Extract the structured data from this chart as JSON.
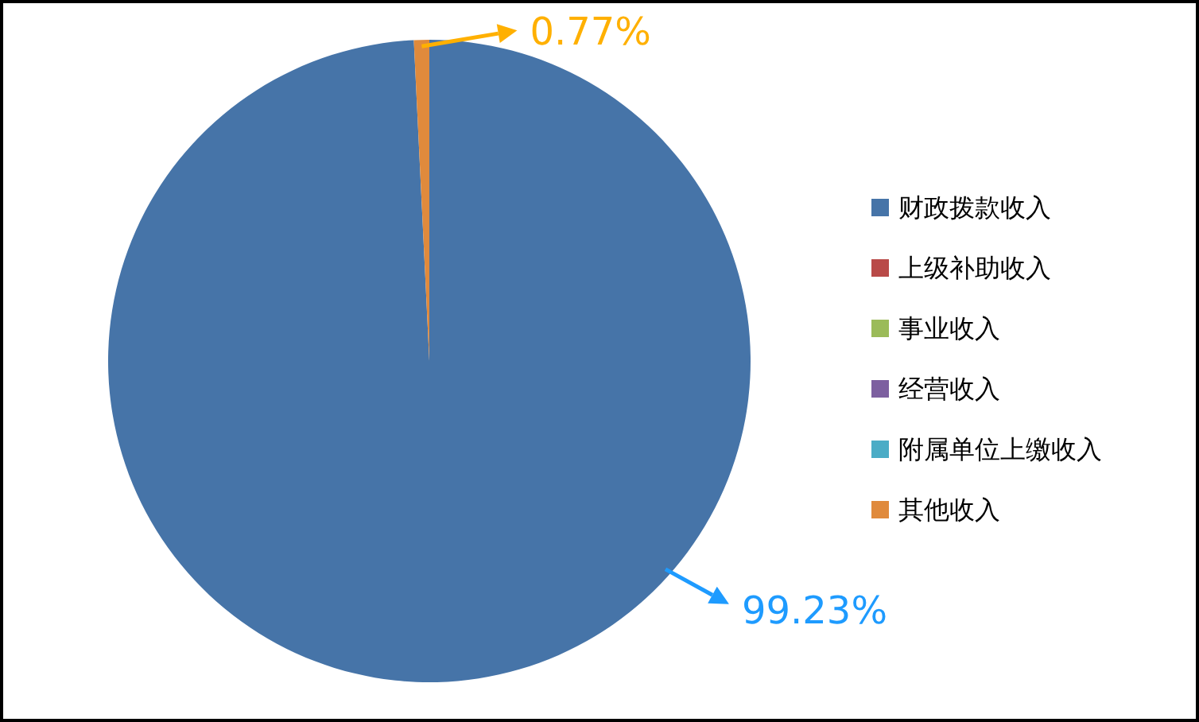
{
  "chart_data": {
    "type": "pie",
    "categories": [
      "财政拨款收入",
      "上级补助收入",
      "事业收入",
      "经营收入",
      "附属单位上缴收入",
      "其他收入"
    ],
    "values": [
      99.23,
      0,
      0,
      0,
      0,
      0.77
    ],
    "colors": [
      "#4674a8",
      "#b94a48",
      "#9bbb59",
      "#7d60a0",
      "#4bacc6",
      "#e08a3c"
    ],
    "value_labels": [
      "99.23%",
      null,
      null,
      null,
      null,
      "0.77%"
    ],
    "legend": "right"
  }
}
